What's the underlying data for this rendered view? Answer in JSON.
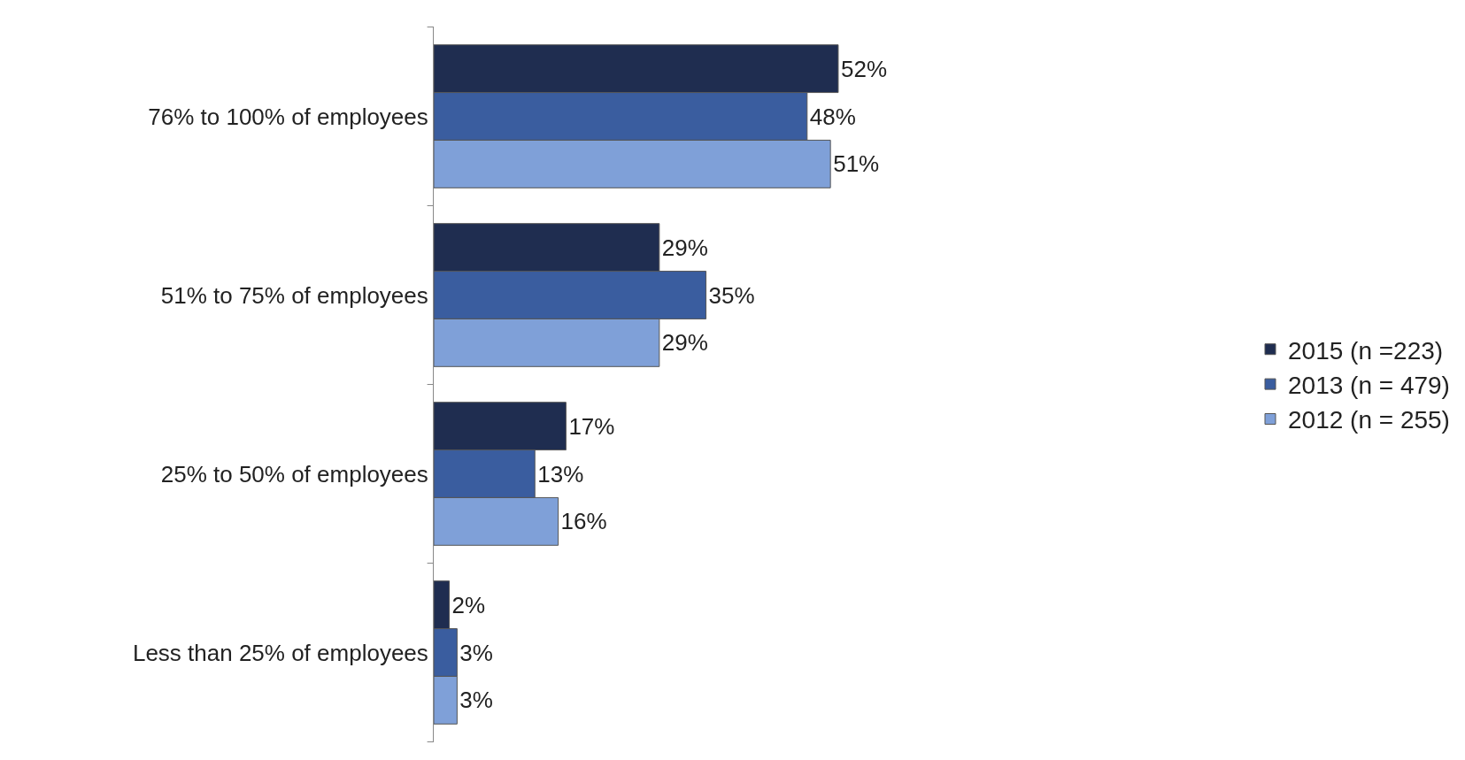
{
  "chart_data": {
    "type": "bar",
    "orientation": "horizontal",
    "categories": [
      "76% to 100% of employees",
      "51% to 75% of employees",
      "25% to 50% of employees",
      "Less than 25% of employees"
    ],
    "series": [
      {
        "name": "2015 (n =223)",
        "color": "#1f2d50",
        "values": [
          52,
          29,
          17,
          2
        ],
        "value_labels": [
          "52%",
          "29%",
          "17%",
          "2%"
        ]
      },
      {
        "name": "2013 (n = 479)",
        "color": "#3a5d9f",
        "values": [
          48,
          35,
          13,
          3
        ],
        "value_labels": [
          "48%",
          "35%",
          "13%",
          "3%"
        ]
      },
      {
        "name": "2012 (n = 255)",
        "color": "#7fa0d8",
        "values": [
          51,
          29,
          16,
          3
        ],
        "value_labels": [
          "51%",
          "29%",
          "16%",
          "3%"
        ]
      }
    ],
    "legend": "right",
    "tick_labels": "y"
  }
}
